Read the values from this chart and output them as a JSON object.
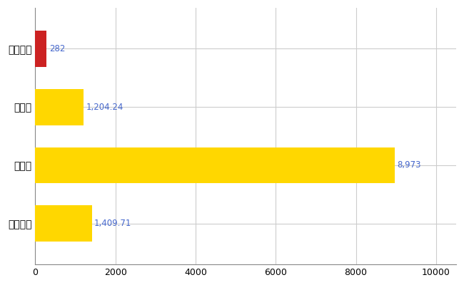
{
  "categories": [
    "宇多津町",
    "県平均",
    "県最大",
    "全国平均"
  ],
  "values": [
    282,
    1204.24,
    8973,
    1409.71
  ],
  "colors": [
    "#CC2222",
    "#FFD700",
    "#FFD700",
    "#FFD700"
  ],
  "labels": [
    "282",
    "1,204.24",
    "8,973",
    "1,409.71"
  ],
  "xlim": [
    0,
    10500
  ],
  "xticks": [
    0,
    2000,
    4000,
    6000,
    8000,
    10000
  ],
  "figsize": [
    6.5,
    4.0
  ],
  "dpi": 100,
  "bar_height": 0.62,
  "label_fontsize": 8.5,
  "tick_fontsize": 9,
  "ytick_fontsize": 10,
  "grid_color": "#CCCCCC",
  "bg_color": "#FFFFFF",
  "label_color": "#4466CC",
  "spine_color": "#888888"
}
